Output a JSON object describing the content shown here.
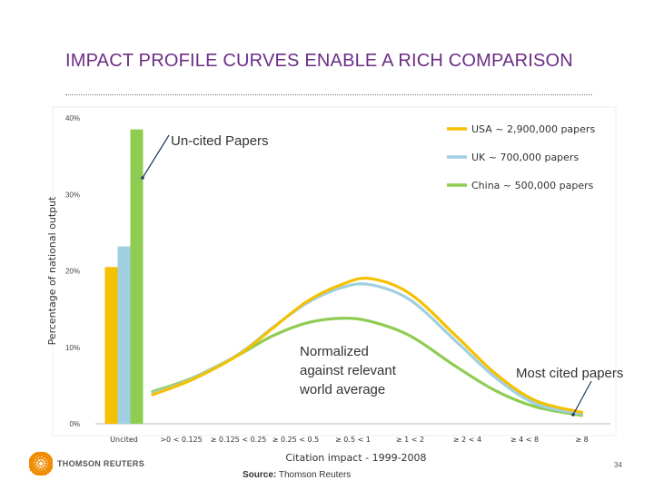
{
  "slide": {
    "title": "IMPACT PROFILE CURVES ENABLE A RICH COMPARISON",
    "source_label": "Source:",
    "source_text": " Thomson Reuters",
    "logo_text": "THOMSON REUTERS",
    "page_number": "34"
  },
  "colors": {
    "title": "#6b2d86",
    "usa": "#f5c000",
    "uk": "#9fcfe0",
    "china": "#8fcc52"
  },
  "chart_data": {
    "type": "line",
    "xlabel": "Citation impact - 1999-2008",
    "ylabel": "Percentage of national output",
    "ylim": [
      0,
      40
    ],
    "yticks": [
      "0%",
      "10%",
      "20%",
      "30%",
      "40%"
    ],
    "ytick_values": [
      0,
      10,
      20,
      30,
      40
    ],
    "categories": [
      ">0 < 0.125",
      "≥ 0.125 < 0.25",
      "≥ 0.25 < 0.5",
      "≥ 0.5 < 1",
      "≥ 1 < 2",
      "≥ 2 < 4",
      "≥ 4 < 8",
      "≥ 8"
    ],
    "uncited_category": "Uncited",
    "grid": false,
    "legend_position": "top-right",
    "series": [
      {
        "name": "USA ~ 2,900,000 papers",
        "color": "#f5c000",
        "uncited": 20.5,
        "x": [
          0.5,
          1.2,
          2.0,
          2.6,
          3.2,
          3.8,
          4.3,
          5.0,
          5.8,
          6.5,
          7.2,
          8.0
        ],
        "values": [
          3.8,
          5.8,
          9.0,
          12.5,
          16.0,
          18.2,
          19.0,
          17.0,
          11.5,
          6.5,
          3.0,
          1.5
        ]
      },
      {
        "name": "UK ~ 700,000 papers",
        "color": "#9fcfe0",
        "uncited": 23.2,
        "x": [
          0.5,
          1.2,
          2.0,
          2.6,
          3.2,
          3.8,
          4.3,
          5.0,
          5.8,
          6.5,
          7.2,
          8.0
        ],
        "values": [
          4.0,
          5.9,
          9.1,
          12.6,
          15.8,
          17.8,
          18.2,
          16.2,
          10.8,
          6.0,
          2.6,
          1.3
        ]
      },
      {
        "name": "China ~ 500,000 papers",
        "color": "#8fcc52",
        "uncited": 38.5,
        "x": [
          0.5,
          1.2,
          2.0,
          2.6,
          3.2,
          3.8,
          4.3,
          5.0,
          5.8,
          6.5,
          7.2,
          8.0
        ],
        "values": [
          4.2,
          6.0,
          9.0,
          11.5,
          13.2,
          13.8,
          13.4,
          11.5,
          7.5,
          4.3,
          2.2,
          1.1
        ]
      }
    ],
    "annotations": [
      {
        "text": "Un-cited Papers"
      },
      {
        "text": "Normalized against relevant world average"
      },
      {
        "text": "Most cited papers"
      }
    ]
  }
}
